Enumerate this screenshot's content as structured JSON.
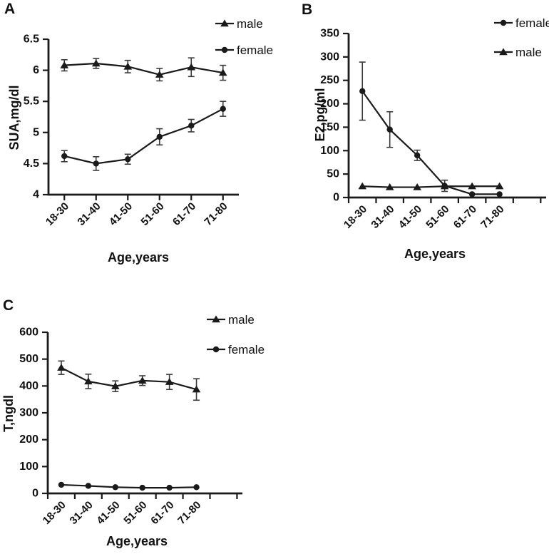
{
  "figure_title": "",
  "chart_data": [
    {
      "type": "line",
      "panel_label": "A",
      "xlabel": "Age,years",
      "ylabel": "SUA,mg/dl",
      "categories": [
        "18-30",
        "31-40",
        "41-50",
        "51-60",
        "61-70",
        "71-80"
      ],
      "ylim": [
        4,
        6.5
      ],
      "yticks": [
        4,
        4.5,
        5,
        5.5,
        6,
        6.5
      ],
      "ytick_labels": [
        "4",
        "4.5",
        "5",
        "5.5",
        "6",
        "6.5"
      ],
      "grid": false,
      "legend_position": "top-right",
      "x_tick_style": "on-category",
      "x_total_slots": 6,
      "series": [
        {
          "name": "male",
          "marker": "triangle",
          "values": [
            6.08,
            6.11,
            6.06,
            5.93,
            6.05,
            5.96
          ],
          "errors": [
            0.09,
            0.08,
            0.1,
            0.1,
            0.15,
            0.12
          ]
        },
        {
          "name": "female",
          "marker": "circle",
          "values": [
            4.62,
            4.5,
            4.57,
            4.93,
            5.11,
            5.38
          ],
          "errors": [
            0.09,
            0.11,
            0.08,
            0.13,
            0.1,
            0.12
          ]
        }
      ]
    },
    {
      "type": "line",
      "panel_label": "B",
      "xlabel": "Age,years",
      "ylabel": "E2,pg/ml",
      "categories": [
        "18-30",
        "31-40",
        "41-50",
        "51-60",
        "61-70",
        "71-80"
      ],
      "ylim": [
        0,
        350
      ],
      "yticks": [
        0,
        50,
        100,
        150,
        200,
        250,
        300,
        350
      ],
      "ytick_labels": [
        "0",
        "50",
        "100",
        "150",
        "200",
        "250",
        "300",
        "350"
      ],
      "grid": false,
      "legend_position": "top-right",
      "x_tick_style": "between-categories",
      "x_total_slots": 7.2,
      "series": [
        {
          "name": "female",
          "marker": "circle",
          "values": [
            227,
            145,
            90,
            25,
            7,
            7
          ],
          "errors": [
            62,
            38,
            11,
            12,
            0,
            0
          ]
        },
        {
          "name": "male",
          "marker": "triangle",
          "values": [
            24,
            22,
            22,
            24,
            24,
            24
          ],
          "errors": [
            0,
            0,
            0,
            0,
            0,
            0
          ]
        }
      ]
    },
    {
      "type": "line",
      "panel_label": "C",
      "xlabel": "Age,years",
      "ylabel": "T,ngdl",
      "categories": [
        "18-30",
        "31-40",
        "41-50",
        "51-60",
        "61-70",
        "71-80"
      ],
      "ylim": [
        0,
        600
      ],
      "yticks": [
        0,
        100,
        200,
        300,
        400,
        500,
        600
      ],
      "ytick_labels": [
        "0",
        "100",
        "200",
        "300",
        "400",
        "500",
        "600"
      ],
      "grid": false,
      "legend_position": "top-right",
      "x_tick_style": "between-categories",
      "x_total_slots": 7.2,
      "series": [
        {
          "name": "male",
          "marker": "triangle",
          "values": [
            468,
            417,
            399,
            420,
            415,
            387
          ],
          "errors": [
            25,
            27,
            20,
            18,
            28,
            40
          ]
        },
        {
          "name": "female",
          "marker": "circle",
          "values": [
            32,
            28,
            23,
            21,
            21,
            23
          ],
          "errors": [
            0,
            0,
            0,
            0,
            0,
            0
          ]
        }
      ]
    }
  ],
  "colors": {
    "line": "#1a1a1a",
    "error_bar": "#3a3a3a",
    "text": "#111111",
    "background": "#ffffff"
  }
}
